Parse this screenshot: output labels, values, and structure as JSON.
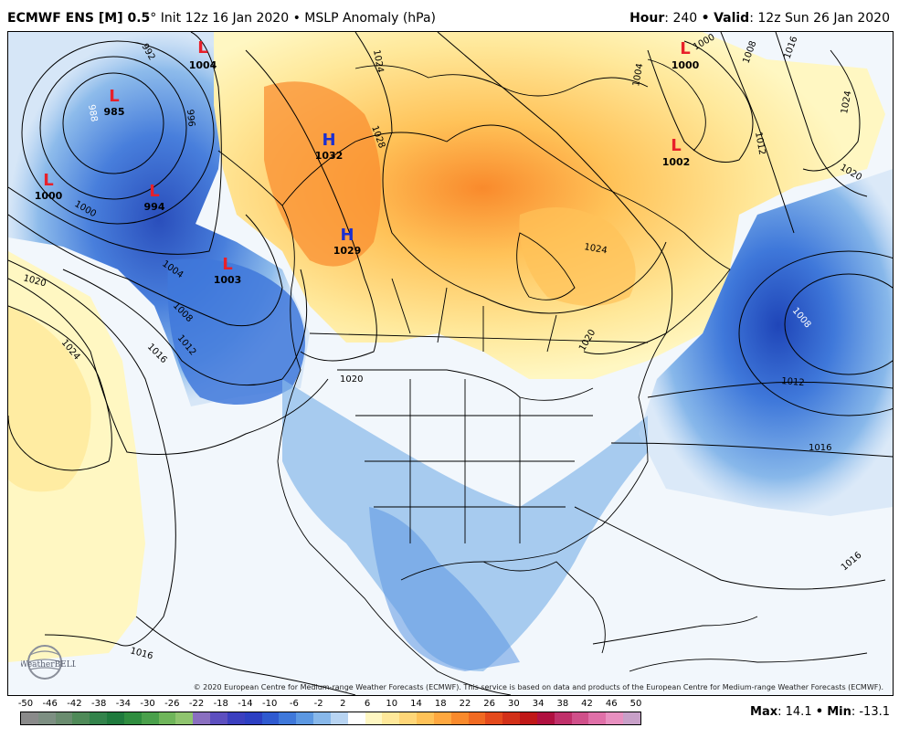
{
  "header": {
    "model": "ECMWF ENS [M] 0.5",
    "degree": "°",
    "init": "Init 12z 16 Jan 2020",
    "bullet": "•",
    "product": "MSLP Anomaly (hPa)",
    "hour_label": "Hour",
    "hour_value": "240",
    "valid_label": "Valid",
    "valid_value": "12z Sun 26 Jan 2020"
  },
  "map": {
    "pressure_systems": [
      {
        "type": "L",
        "value": "1004"
      },
      {
        "type": "L",
        "value": "985"
      },
      {
        "type": "L",
        "value": "1000"
      },
      {
        "type": "L",
        "value": "994"
      },
      {
        "type": "L",
        "value": "1003"
      },
      {
        "type": "H",
        "value": "1032"
      },
      {
        "type": "H",
        "value": "1029"
      },
      {
        "type": "L",
        "value": "1000"
      },
      {
        "type": "L",
        "value": "1002"
      }
    ],
    "isobar_labels": [
      "992",
      "988",
      "996",
      "1000",
      "1004",
      "1008",
      "1012",
      "1016",
      "1020",
      "1024",
      "1024",
      "1028",
      "1024",
      "1020",
      "1000",
      "1004",
      "1008",
      "1016",
      "1024",
      "1012",
      "1020",
      "1008",
      "1012",
      "1016",
      "1016",
      "1016",
      "1020",
      "1024"
    ],
    "colors": {
      "low": "#e8202a",
      "high": "#1c2fd0",
      "ocean": "#f2f7fc"
    },
    "copyright": "© 2020 European Centre for Medium-range Weather Forecasts (ECMWF). This service is based on data and products of the European Centre for Medium-range Weather Forecasts (ECMWF).",
    "logo_text": "WeatherBELL"
  },
  "colorbar": {
    "ticks": [
      "-50",
      "-46",
      "-42",
      "-38",
      "-34",
      "-30",
      "-26",
      "-22",
      "-18",
      "-14",
      "-10",
      "-6",
      "-2",
      "2",
      "6",
      "10",
      "14",
      "18",
      "22",
      "26",
      "30",
      "34",
      "38",
      "42",
      "46",
      "50"
    ],
    "colors": [
      "#8a8a8a",
      "#7d8f82",
      "#6a8c6f",
      "#4f8a58",
      "#33834b",
      "#1f7a3d",
      "#2f8d3f",
      "#4aa04b",
      "#6fb55a",
      "#8fc46e",
      "#8a6fc0",
      "#5d4fbf",
      "#3b3fbf",
      "#2c3fc2",
      "#2f5ad0",
      "#3f78da",
      "#5c98e2",
      "#88b8ea",
      "#b8d4f2",
      "#ffffff",
      "#fff7c2",
      "#ffe89a",
      "#ffd678",
      "#ffc258",
      "#ffa840",
      "#f98a2c",
      "#f06a22",
      "#e44a1c",
      "#d23018",
      "#c01818",
      "#b01040",
      "#c0306a",
      "#d0508a",
      "#e070a8",
      "#e890c0",
      "#c8a0c8"
    ],
    "max_label": "Max",
    "max_value": "14.1",
    "min_label": "Min",
    "min_value": "-13.1"
  }
}
